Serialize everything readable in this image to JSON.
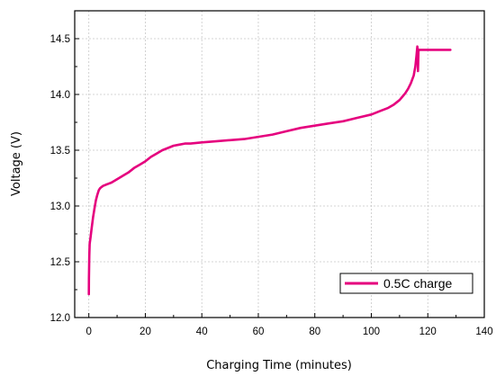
{
  "chart_data": {
    "type": "line",
    "xlabel": "Charging Time (minutes)",
    "ylabel": "Voltage (V)",
    "xlim": [
      -5,
      140
    ],
    "ylim": [
      12.0,
      14.75
    ],
    "xticks": [
      0,
      20,
      40,
      60,
      80,
      100,
      120,
      140
    ],
    "yticks": [
      12.0,
      12.5,
      13.0,
      13.5,
      14.0,
      14.5
    ],
    "xtick_labels": [
      "0",
      "20",
      "40",
      "60",
      "80",
      "100",
      "120",
      "140"
    ],
    "ytick_labels": [
      "12.0",
      "12.5",
      "13.0",
      "13.5",
      "14.0",
      "14.5"
    ],
    "grid": true,
    "legend": "bottom-right",
    "series": [
      {
        "name": "0.5C  charge",
        "color": "#e5007e",
        "x": [
          0,
          0.05,
          0.15,
          0.3,
          0.6,
          1,
          1.5,
          2,
          2.5,
          3,
          3.5,
          4,
          4.5,
          5,
          6,
          7,
          8,
          10,
          12,
          14,
          16,
          18,
          20,
          22,
          24,
          26,
          28,
          30,
          32,
          34,
          36,
          40,
          45,
          50,
          55,
          60,
          65,
          70,
          75,
          80,
          85,
          90,
          95,
          100,
          103,
          106,
          108,
          110,
          111,
          112,
          113,
          114,
          115,
          115.6,
          116,
          116.3,
          116.5,
          116.5,
          116.7,
          117,
          120,
          125,
          128
        ],
        "y": [
          12.21,
          12.35,
          12.55,
          12.66,
          12.72,
          12.8,
          12.9,
          12.98,
          13.05,
          13.1,
          13.14,
          13.16,
          13.17,
          13.18,
          13.19,
          13.2,
          13.21,
          13.24,
          13.27,
          13.3,
          13.34,
          13.37,
          13.4,
          13.44,
          13.47,
          13.5,
          13.52,
          13.54,
          13.55,
          13.56,
          13.56,
          13.57,
          13.58,
          13.59,
          13.6,
          13.62,
          13.64,
          13.67,
          13.7,
          13.72,
          13.74,
          13.76,
          13.79,
          13.82,
          13.85,
          13.88,
          13.91,
          13.95,
          13.98,
          14.01,
          14.05,
          14.1,
          14.17,
          14.25,
          14.35,
          14.43,
          14.39,
          14.21,
          14.39,
          14.4,
          14.4,
          14.4,
          14.4
        ]
      }
    ]
  }
}
